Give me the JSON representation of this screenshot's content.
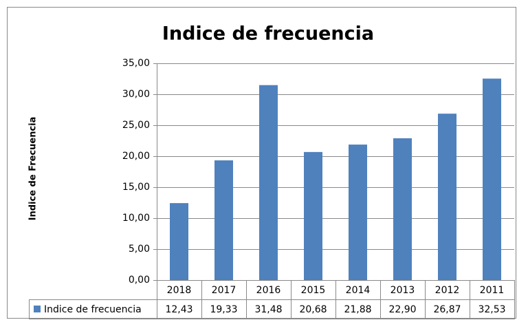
{
  "chart_data": {
    "type": "bar",
    "title": "Indice de frecuencia",
    "y_label": "Indice de Frecuencia",
    "categories": [
      "2018",
      "2017",
      "2016",
      "2015",
      "2014",
      "2013",
      "2012",
      "2011"
    ],
    "series": [
      {
        "name": "Indice de frecuencia",
        "color": "#4f81bd",
        "values": [
          12.43,
          19.33,
          31.48,
          20.68,
          21.88,
          22.9,
          26.87,
          32.53
        ],
        "value_labels": [
          "12,43",
          "19,33",
          "31,48",
          "20,68",
          "21,88",
          "22,90",
          "26,87",
          "32,53"
        ]
      }
    ],
    "ylim": [
      0,
      35
    ],
    "yticks": [
      {
        "value": 0,
        "label": "0,00"
      },
      {
        "value": 5,
        "label": "5,00"
      },
      {
        "value": 10,
        "label": "10,00"
      },
      {
        "value": 15,
        "label": "15,00"
      },
      {
        "value": 20,
        "label": "20,00"
      },
      {
        "value": 25,
        "label": "25,00"
      },
      {
        "value": 30,
        "label": "30,00"
      },
      {
        "value": 35,
        "label": "35,00"
      }
    ],
    "grid": true,
    "data_table": true
  }
}
